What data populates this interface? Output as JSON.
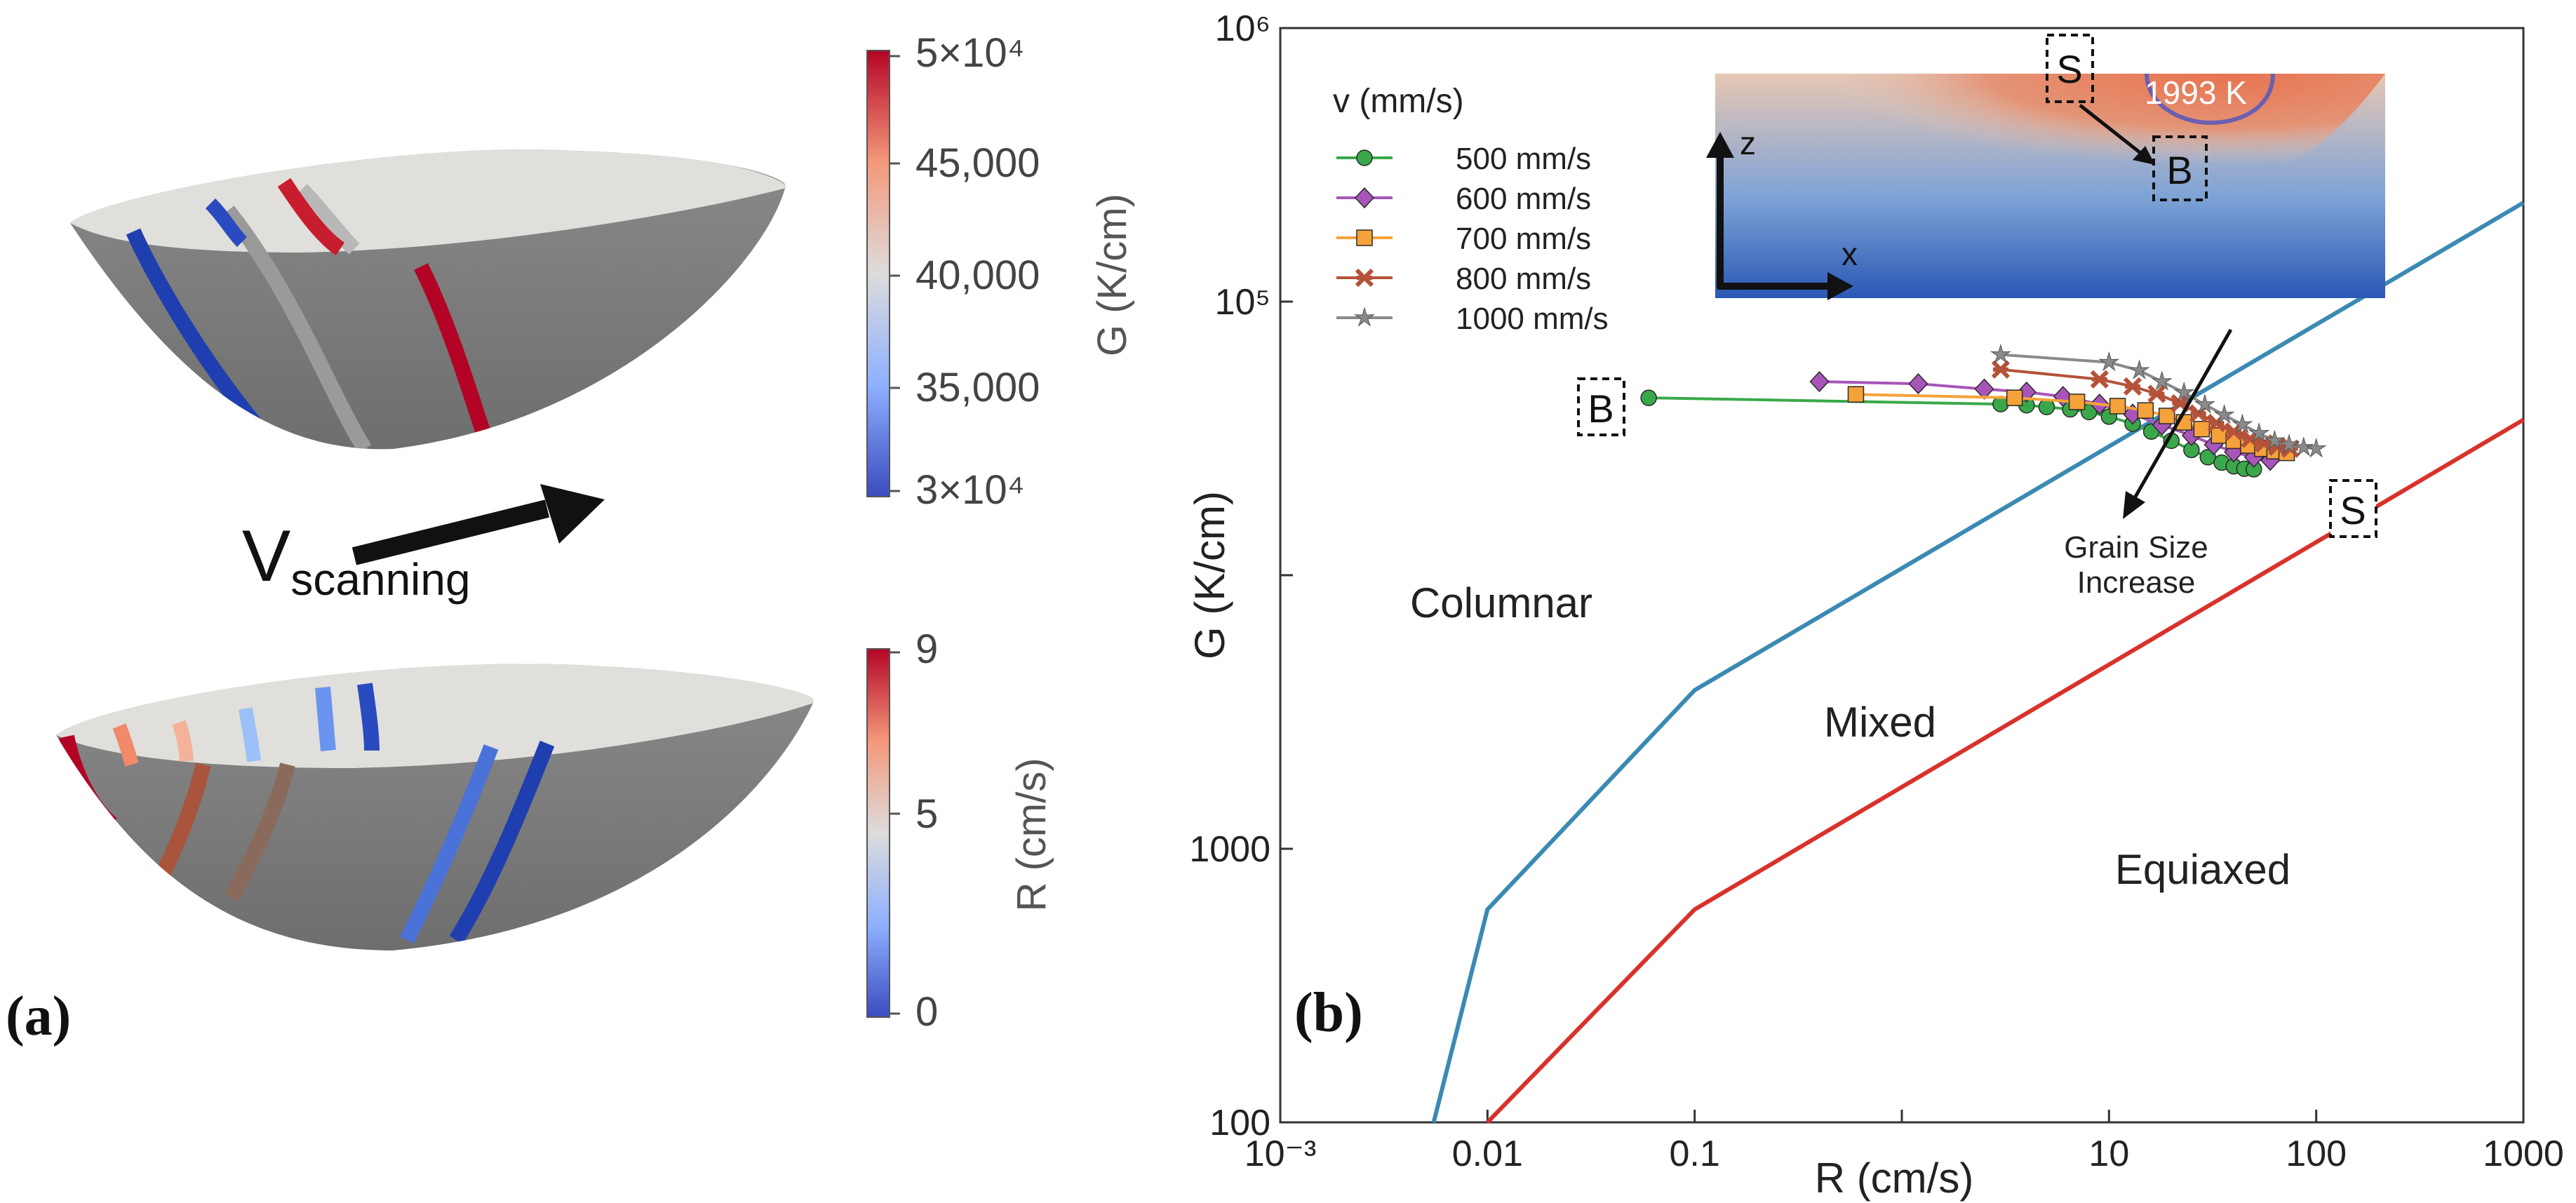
{
  "panel_a": {
    "label": "(a)",
    "arrow_label_main": "V",
    "arrow_label_sub": "scanning",
    "colorbar_G": {
      "label": "G (K/cm)",
      "ticks": [
        "5×10⁴",
        "45,000",
        "40,000",
        "35,000",
        "3×10⁴"
      ],
      "colors": [
        "#b40426",
        "#f4987a",
        "#dddcdc",
        "#8db0fe",
        "#3b4cc0"
      ]
    },
    "colorbar_R": {
      "label": "R (cm/s)",
      "ticks": [
        "9",
        "5",
        "0"
      ]
    }
  },
  "panel_b": {
    "label": "(b)",
    "inset": {
      "temperature_label": "1993 K",
      "axis_z": "z",
      "axis_x": "x",
      "marker_S": "S",
      "marker_B": "B"
    },
    "markers": {
      "B": "B",
      "S": "S"
    },
    "annotation": {
      "line1": "Grain Size",
      "line2": "Increase"
    },
    "regions": {
      "columnar": "Columnar",
      "mixed": "Mixed",
      "equiaxed": "Equiaxed"
    }
  },
  "chart_data": {
    "type": "line",
    "xlabel": "R (cm/s)",
    "ylabel": "G (K/cm)",
    "xscale": "log",
    "yscale": "log",
    "xlim": [
      0.001,
      1000
    ],
    "ylim": [
      100,
      1000000
    ],
    "x_ticks": [
      "10⁻³",
      "0.01",
      "0.1",
      "10",
      "100",
      "1000"
    ],
    "y_ticks": [
      "10⁶",
      "10⁵",
      "1000",
      "100"
    ],
    "legend_title": "v (mm/s)",
    "legend_position": "top-left",
    "boundaries": [
      {
        "name": "columnar-mixed",
        "color": "#3a8ab3",
        "x": [
          0.0055,
          0.01,
          0.1,
          1000
        ],
        "y": [
          100,
          600,
          3800,
          230000
        ]
      },
      {
        "name": "mixed-equiaxed",
        "color": "#d9312b",
        "x": [
          0.01,
          0.1,
          1000
        ],
        "y": [
          100,
          600,
          37000
        ]
      }
    ],
    "series": [
      {
        "name": "500 mm/s",
        "color": "#3aa84a",
        "marker": "circle",
        "x": [
          0.06,
          3,
          4,
          5,
          6.5,
          8,
          10,
          13,
          16,
          20,
          25,
          30,
          35,
          40,
          45,
          50
        ],
        "y": [
          44500,
          42200,
          41800,
          41200,
          40400,
          39500,
          38000,
          35800,
          33500,
          31000,
          28700,
          27000,
          25800,
          25000,
          24500,
          24400
        ]
      },
      {
        "name": "600 mm/s",
        "color": "#a855b9",
        "marker": "diamond",
        "x": [
          0.4,
          1.2,
          2.5,
          4,
          6,
          9,
          13,
          18,
          25,
          32,
          40,
          50,
          60
        ],
        "y": [
          51000,
          50100,
          47900,
          46700,
          45000,
          42200,
          38800,
          35400,
          32400,
          30000,
          28200,
          27000,
          26300
        ]
      },
      {
        "name": "700 mm/s",
        "color": "#f5a23a",
        "marker": "square",
        "x": [
          0.6,
          3.5,
          7,
          11,
          15,
          19,
          23,
          28,
          34,
          40,
          47,
          55,
          63,
          72
        ],
        "y": [
          45800,
          44500,
          43000,
          41500,
          40000,
          38200,
          36200,
          34200,
          32400,
          31000,
          29800,
          29000,
          28400,
          28000
        ]
      },
      {
        "name": "800 mm/s",
        "color": "#b5523a",
        "marker": "cross",
        "x": [
          3,
          9,
          13,
          17,
          22,
          27,
          33,
          40,
          48,
          56,
          65,
          75
        ],
        "y": [
          56500,
          52000,
          49000,
          46000,
          42500,
          39000,
          36000,
          33500,
          31500,
          30300,
          29500,
          29000
        ]
      },
      {
        "name": "1000 mm/s",
        "color": "#8a8a8a",
        "marker": "star",
        "x": [
          3,
          10,
          14,
          18,
          23,
          29,
          36,
          44,
          53,
          63,
          74,
          87,
          100
        ],
        "y": [
          64000,
          60000,
          56000,
          51000,
          46500,
          42000,
          38500,
          35500,
          33000,
          31000,
          30000,
          29300,
          29000
        ]
      }
    ]
  }
}
